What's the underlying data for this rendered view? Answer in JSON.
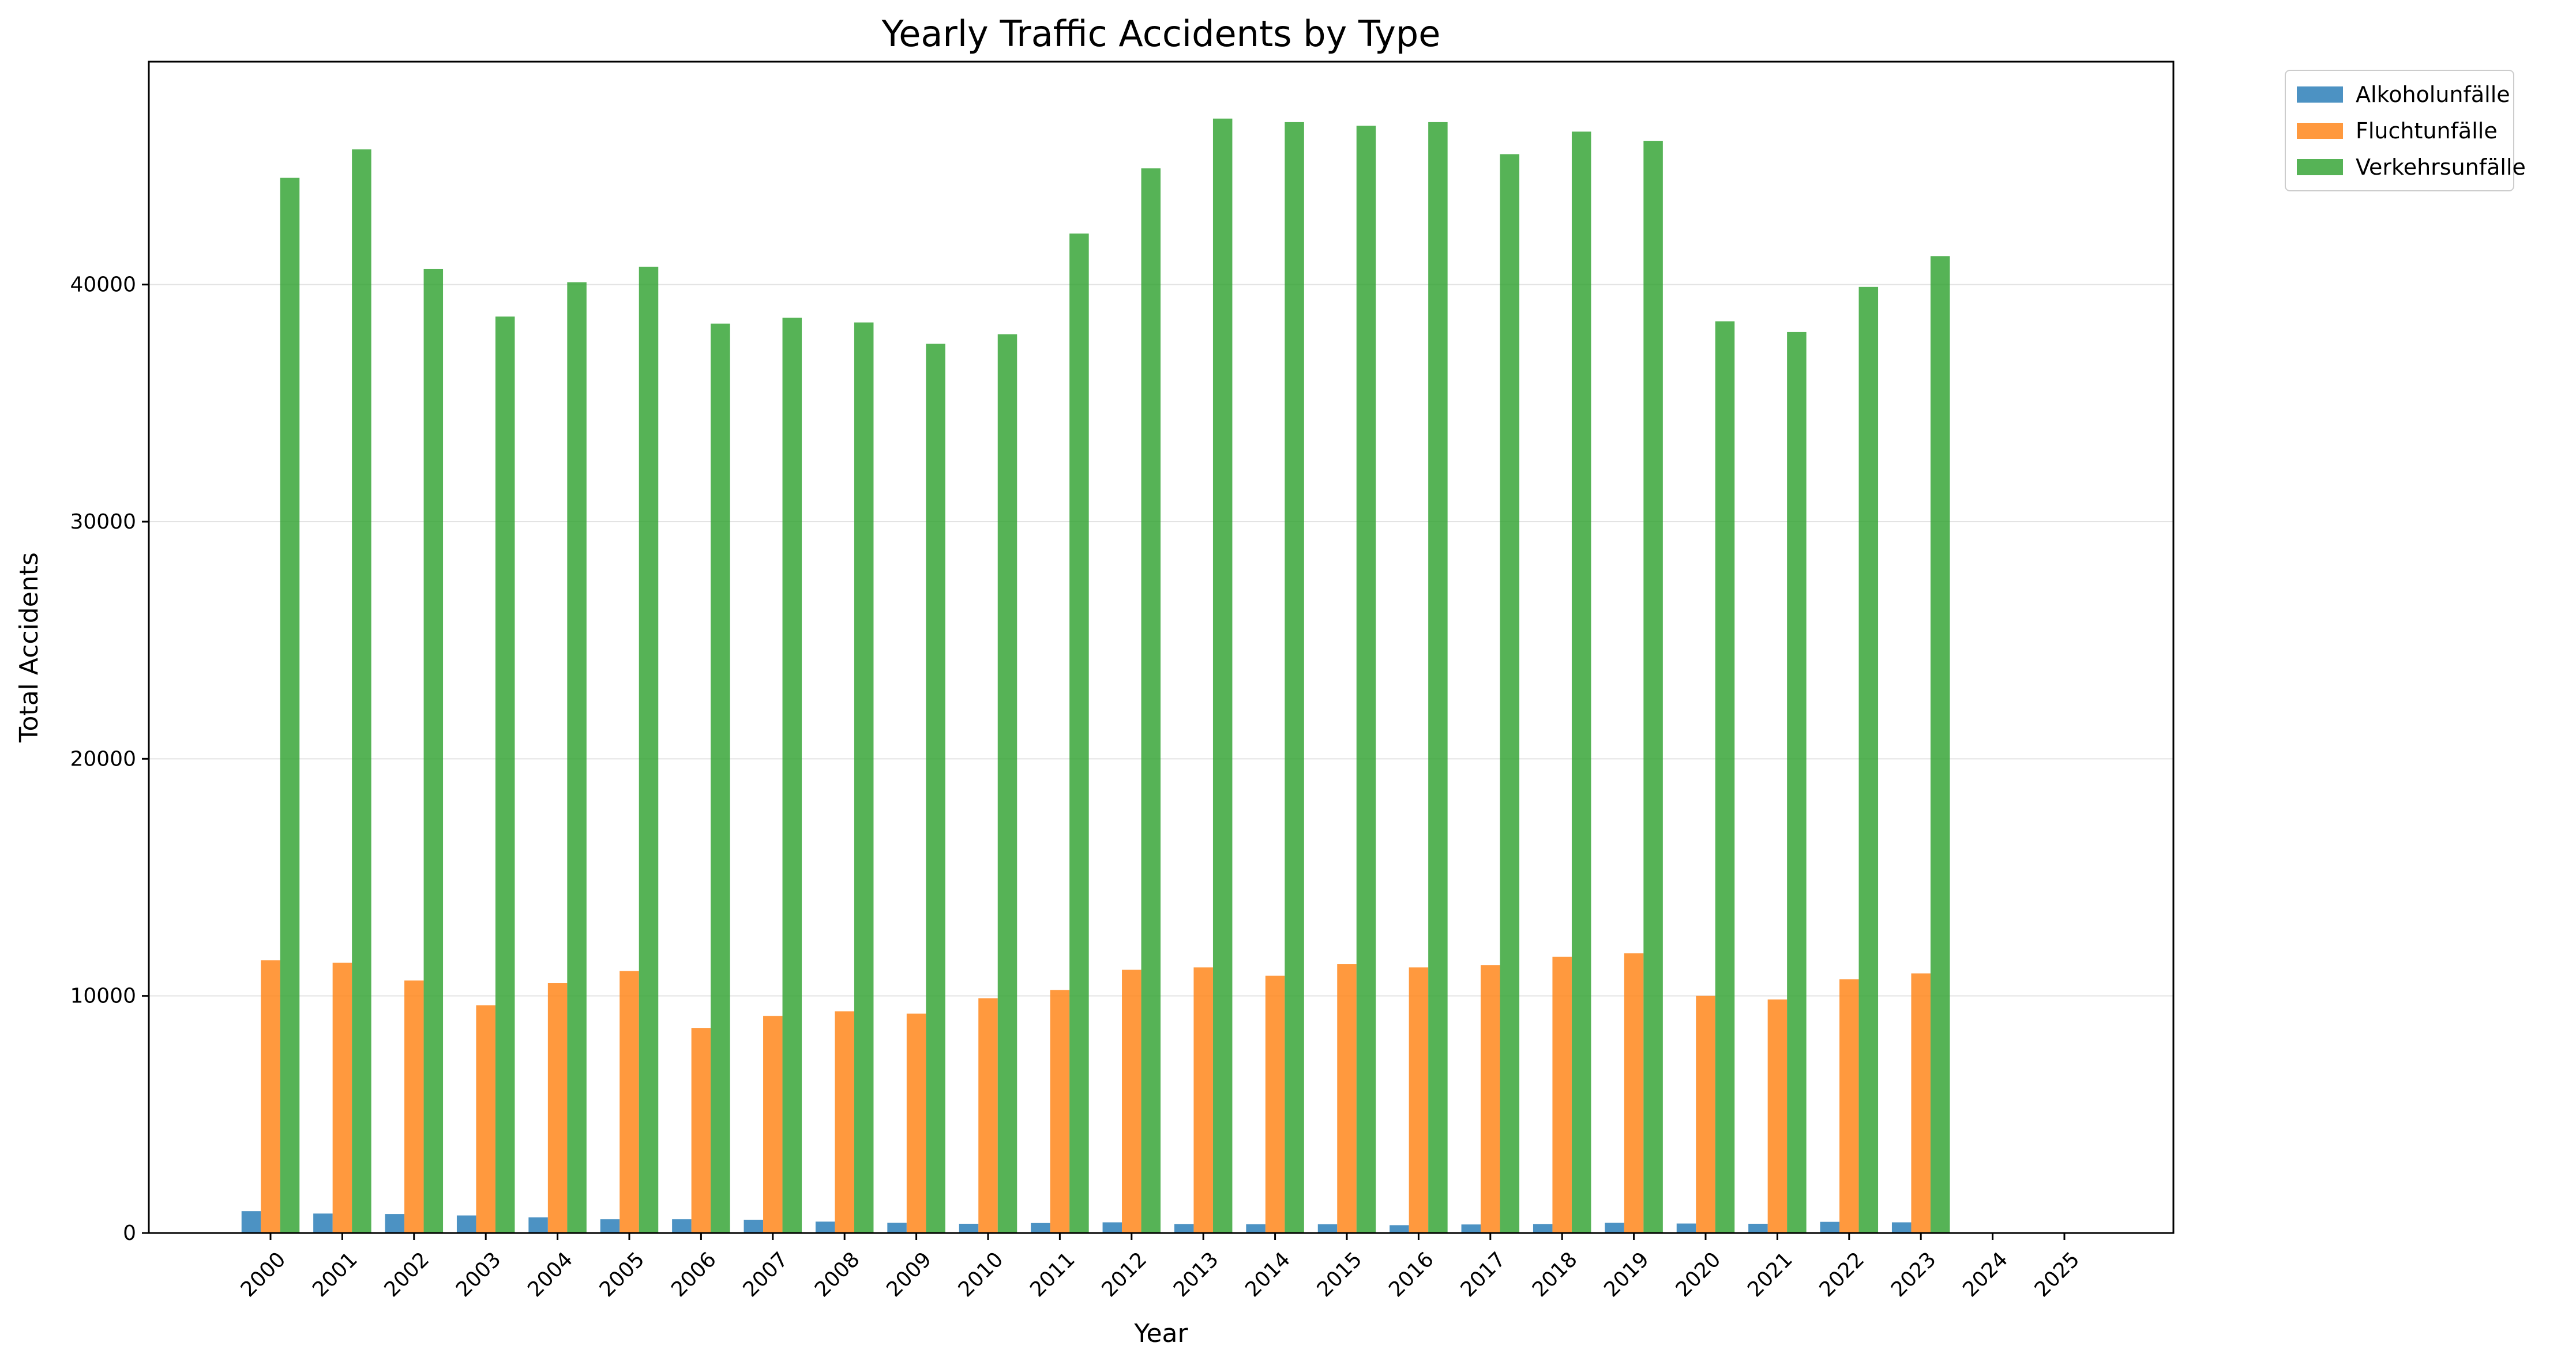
{
  "chart_data": {
    "type": "bar",
    "title": "Yearly Traffic Accidents by Type",
    "xlabel": "Year",
    "ylabel": "Total Accidents",
    "categories": [
      "2000",
      "2001",
      "2002",
      "2003",
      "2004",
      "2005",
      "2006",
      "2007",
      "2008",
      "2009",
      "2010",
      "2011",
      "2012",
      "2013",
      "2014",
      "2015",
      "2016",
      "2017",
      "2018",
      "2019",
      "2020",
      "2021",
      "2022",
      "2023",
      "2024",
      "2025"
    ],
    "ylim": [
      0,
      49400
    ],
    "yticks": [
      0,
      10000,
      20000,
      30000,
      40000
    ],
    "grid": "horizontal",
    "legend_position": "outside-top-right",
    "series": [
      {
        "name": "Alkoholunfälle",
        "color": "#1f77b4",
        "values": [
          920,
          820,
          800,
          740,
          660,
          580,
          580,
          560,
          480,
          430,
          390,
          420,
          450,
          380,
          370,
          370,
          330,
          360,
          380,
          430,
          400,
          390,
          470,
          450,
          0,
          0
        ]
      },
      {
        "name": "Fluchtunfälle",
        "color": "#ff7f0e",
        "values": [
          11500,
          11400,
          10650,
          9600,
          10550,
          11050,
          8650,
          9150,
          9350,
          9250,
          9900,
          10250,
          11100,
          11200,
          10850,
          11350,
          11200,
          11300,
          11650,
          11800,
          10000,
          9850,
          10700,
          10950,
          0,
          0
        ]
      },
      {
        "name": "Verkehrsunfälle",
        "color": "#2ca02c",
        "values": [
          44500,
          45700,
          40650,
          38650,
          40100,
          40750,
          38350,
          38600,
          38400,
          37500,
          37900,
          42150,
          44900,
          47000,
          46850,
          46700,
          46850,
          45500,
          46450,
          46050,
          38450,
          38000,
          39900,
          41200,
          0,
          0
        ]
      }
    ]
  }
}
